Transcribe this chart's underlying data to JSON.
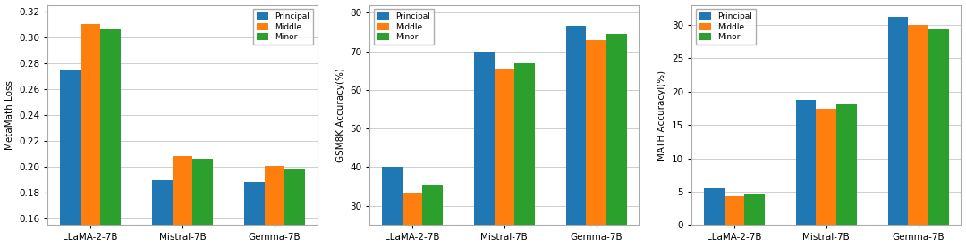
{
  "categories": [
    "LLaMA-2-7B",
    "Mistral-7B",
    "Gemma-7B"
  ],
  "legend_labels": [
    "Principal",
    "Middle",
    "Minor"
  ],
  "colors": [
    "#1f77b4",
    "#ff7f0e",
    "#2ca02c"
  ],
  "plot1": {
    "ylabel": "MetaMath Loss",
    "ylim": [
      0.155,
      0.325
    ],
    "yticks": [
      0.16,
      0.18,
      0.2,
      0.22,
      0.24,
      0.26,
      0.28,
      0.3,
      0.32
    ],
    "legend_loc": "upper right",
    "data": [
      [
        0.275,
        0.31,
        0.306
      ],
      [
        0.19,
        0.208,
        0.206
      ],
      [
        0.188,
        0.201,
        0.198
      ]
    ]
  },
  "plot2": {
    "ylabel": "GSM8K Accuracy(%)",
    "ylim": [
      25,
      82
    ],
    "yticks": [
      30,
      40,
      50,
      60,
      70,
      80
    ],
    "legend_loc": "upper left",
    "data": [
      [
        40.0,
        33.5,
        35.2
      ],
      [
        69.8,
        65.5,
        67.0
      ],
      [
        76.7,
        72.8,
        74.5
      ]
    ]
  },
  "plot3": {
    "ylabel": "MATH Accuracyl(%)",
    "ylim": [
      0,
      33
    ],
    "yticks": [
      0,
      5,
      10,
      15,
      20,
      25,
      30
    ],
    "legend_loc": "upper left",
    "data": [
      [
        5.6,
        4.4,
        4.6
      ],
      [
        18.8,
        17.5,
        18.1
      ],
      [
        31.2,
        30.0,
        29.5
      ]
    ]
  }
}
